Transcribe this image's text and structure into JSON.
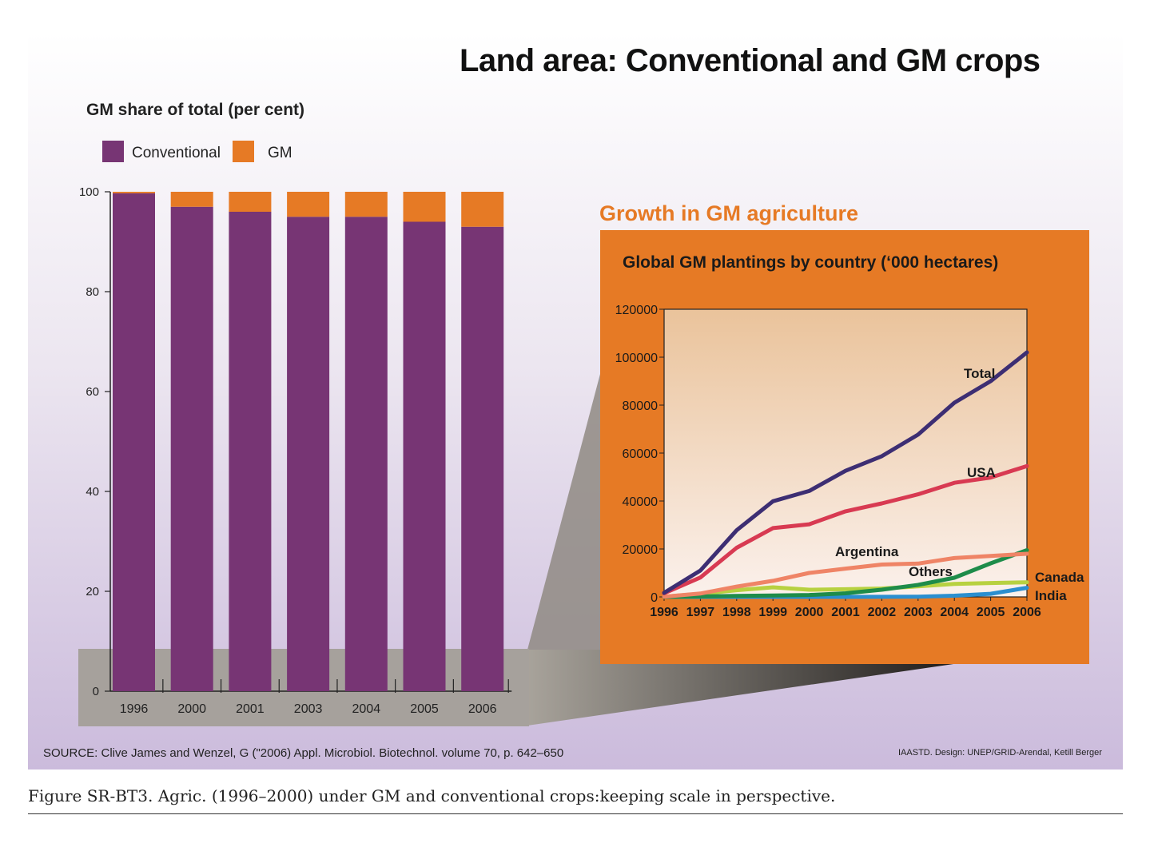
{
  "title": "Land area: Conventional and GM crops",
  "inset_heading": "Growth in GM agriculture",
  "source": "SOURCE: Clive James and Wenzel, G (\"2006) Appl. Microbiol. Biotechnol. volume 70, p. 642–650",
  "credit": "IAASTD. Design: UNEP/GRID-Arendal, Ketill Berger",
  "caption": "Figure SR-BT3. Agric. (1996–2000) under GM and conventional crops:keeping scale in perspective.",
  "colors": {
    "conventional": "#773574",
    "gm": "#e67a25",
    "inset_bg": "#e67a25"
  },
  "chart_data": [
    {
      "type": "bar",
      "stacked": true,
      "title": "GM share of total (per cent)",
      "categories": [
        "1996",
        "2000",
        "2001",
        "2003",
        "2004",
        "2005",
        "2006"
      ],
      "series": [
        {
          "name": "Conventional",
          "color": "#773574",
          "values": [
            99.7,
            97,
            96,
            95,
            95,
            94,
            93
          ]
        },
        {
          "name": "GM",
          "color": "#e67a25",
          "values": [
            0.3,
            3,
            4,
            5,
            5,
            6,
            7
          ]
        }
      ],
      "ylim": [
        0,
        100
      ],
      "yticks": [
        "0",
        "20",
        "40",
        "60",
        "80",
        "100"
      ],
      "legend": "top-left"
    },
    {
      "type": "line",
      "title": "Global GM plantings by country (‘000 hectares)",
      "x": [
        "1996",
        "1997",
        "1998",
        "1999",
        "2000",
        "2001",
        "2002",
        "2003",
        "2004",
        "2005",
        "2006"
      ],
      "ylim": [
        0,
        120000
      ],
      "yticks": [
        "0",
        "20000",
        "40000",
        "60000",
        "80000",
        "100000",
        "120000"
      ],
      "series": [
        {
          "name": "Total",
          "color": "#3d2e73",
          "values": [
            1700,
            11000,
            27800,
            39900,
            44200,
            52600,
            58700,
            67700,
            81000,
            90000,
            102000
          ]
        },
        {
          "name": "USA",
          "color": "#d83a52",
          "values": [
            1500,
            8100,
            20500,
            28700,
            30300,
            35700,
            39000,
            42800,
            47600,
            49800,
            54600
          ]
        },
        {
          "name": "Argentina",
          "color": "#ef8466",
          "values": [
            100,
            1400,
            4300,
            6700,
            10000,
            11800,
            13500,
            13900,
            16200,
            17100,
            18000
          ]
        },
        {
          "name": "Others",
          "color": "#1e8c4a",
          "values": [
            0,
            200,
            400,
            600,
            800,
            1500,
            3000,
            5000,
            8000,
            14000,
            19500
          ]
        },
        {
          "name": "Canada",
          "color": "#b7d141",
          "values": [
            100,
            1300,
            2800,
            4000,
            3000,
            3200,
            3500,
            4400,
            5400,
            5800,
            6100
          ]
        },
        {
          "name": "India",
          "color": "#2b8fd0",
          "values": [
            0,
            0,
            0,
            0,
            0,
            0,
            50,
            100,
            500,
            1300,
            3800
          ]
        }
      ]
    }
  ]
}
